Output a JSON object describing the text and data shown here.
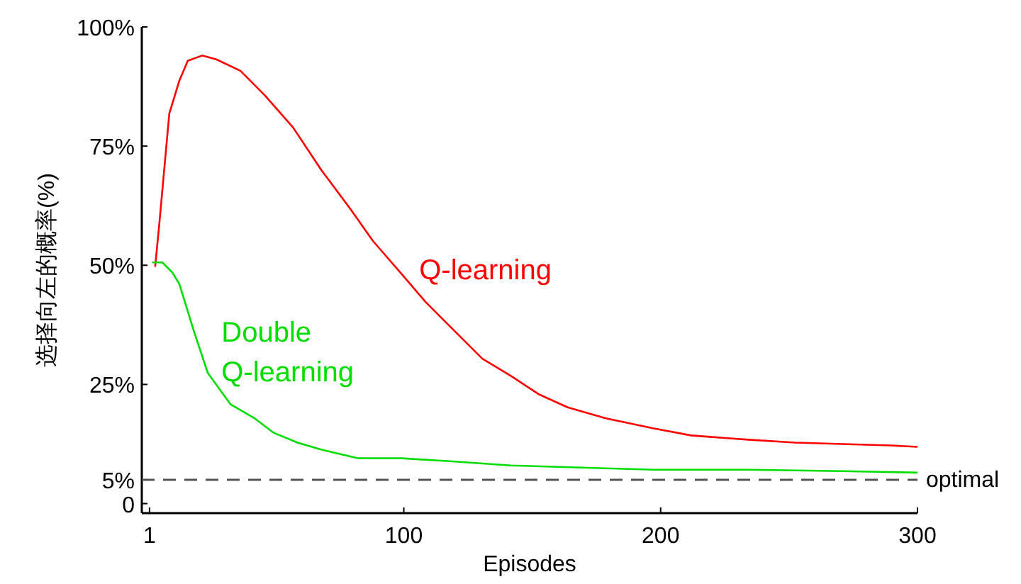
{
  "chart_data": {
    "type": "line",
    "xlabel": "Episodes",
    "ylabel": "选择向左的概率(%)",
    "xlim": [
      -2,
      300
    ],
    "ylim": [
      -2,
      100
    ],
    "xticks": [
      1,
      100,
      200,
      300
    ],
    "yticks": [
      0,
      {
        "value": 5,
        "label": "5%"
      },
      {
        "value": 25,
        "label": "25%"
      },
      {
        "value": 50,
        "label": "50%"
      },
      {
        "value": 75,
        "label": "75%"
      },
      {
        "value": 100,
        "label": "100%"
      }
    ],
    "grid": false,
    "marker": "none",
    "line_style": "solid",
    "series": [
      {
        "name": "Q-learning",
        "color": "#ff0000",
        "x": [
          3.2,
          4.9,
          8.7,
          12.6,
          15.9,
          21.5,
          27.0,
          36.4,
          45.8,
          56.9,
          68.0,
          79.1,
          88.0,
          99.1,
          108.5,
          119.6,
          130.6,
          141.7,
          152.7,
          163.8,
          178.7,
          197.0,
          211.9,
          234.1,
          252.4,
          270.7,
          289.5,
          300
        ],
        "values": [
          49.7,
          59.2,
          81.8,
          88.7,
          92.9,
          94.0,
          93.2,
          90.8,
          85.7,
          78.9,
          69.9,
          61.9,
          55.1,
          48.2,
          42.3,
          36.3,
          30.4,
          26.8,
          22.9,
          20.2,
          17.9,
          15.8,
          14.3,
          13.4,
          12.8,
          12.5,
          12.2,
          11.9
        ]
      },
      {
        "name": "Double Q-learning",
        "color": "#00dd00",
        "x": [
          2.1,
          6.0,
          9.9,
          12.6,
          18.2,
          23.7,
          32.6,
          41.9,
          49.2,
          58.6,
          68.0,
          82.4,
          99.1,
          117.9,
          141.7,
          160.0,
          197.0,
          234.1,
          270.7,
          300
        ],
        "values": [
          50.6,
          50.6,
          48.5,
          46.1,
          36.3,
          27.4,
          20.8,
          17.9,
          14.9,
          12.8,
          11.3,
          9.5,
          9.5,
          8.9,
          8.0,
          7.7,
          7.1,
          7.1,
          6.8,
          6.5
        ]
      }
    ],
    "ref_lines": [
      {
        "axis": "y",
        "value": 5,
        "label": "optimal",
        "color": "#555555",
        "line_style": "dashed"
      }
    ]
  }
}
